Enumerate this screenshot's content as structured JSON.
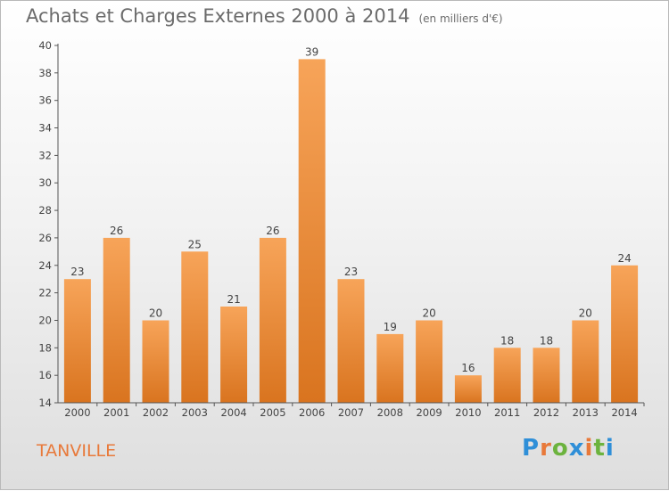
{
  "header": {
    "title": "Achats et Charges Externes 2000 à 2014",
    "unit": "(en milliers d'€)"
  },
  "footer": {
    "place": "TANVILLE",
    "logo": "Proxiti"
  },
  "colors": {
    "bar_top": "#f7a459",
    "bar_bottom": "#d9741f",
    "axis": "#555555",
    "logo_letters": [
      "#2f8fd8",
      "#e8793a",
      "#6cb33e",
      "#2f8fd8",
      "#e8793a",
      "#6cb33e",
      "#2f8fd8"
    ]
  },
  "chart_data": {
    "type": "bar",
    "title": "Achats et Charges Externes 2000 à 2014",
    "subtitle": "(en milliers d'€)",
    "categories": [
      "2000",
      "2001",
      "2002",
      "2003",
      "2004",
      "2005",
      "2006",
      "2007",
      "2008",
      "2009",
      "2010",
      "2011",
      "2012",
      "2013",
      "2014"
    ],
    "values": [
      23,
      26,
      20,
      25,
      21,
      26,
      39,
      23,
      19,
      20,
      16,
      18,
      18,
      20,
      24
    ],
    "ylim": [
      14,
      40
    ],
    "yticks": [
      14,
      16,
      18,
      20,
      22,
      24,
      26,
      28,
      30,
      32,
      34,
      36,
      38,
      40
    ],
    "grid": false,
    "legend": "none"
  }
}
